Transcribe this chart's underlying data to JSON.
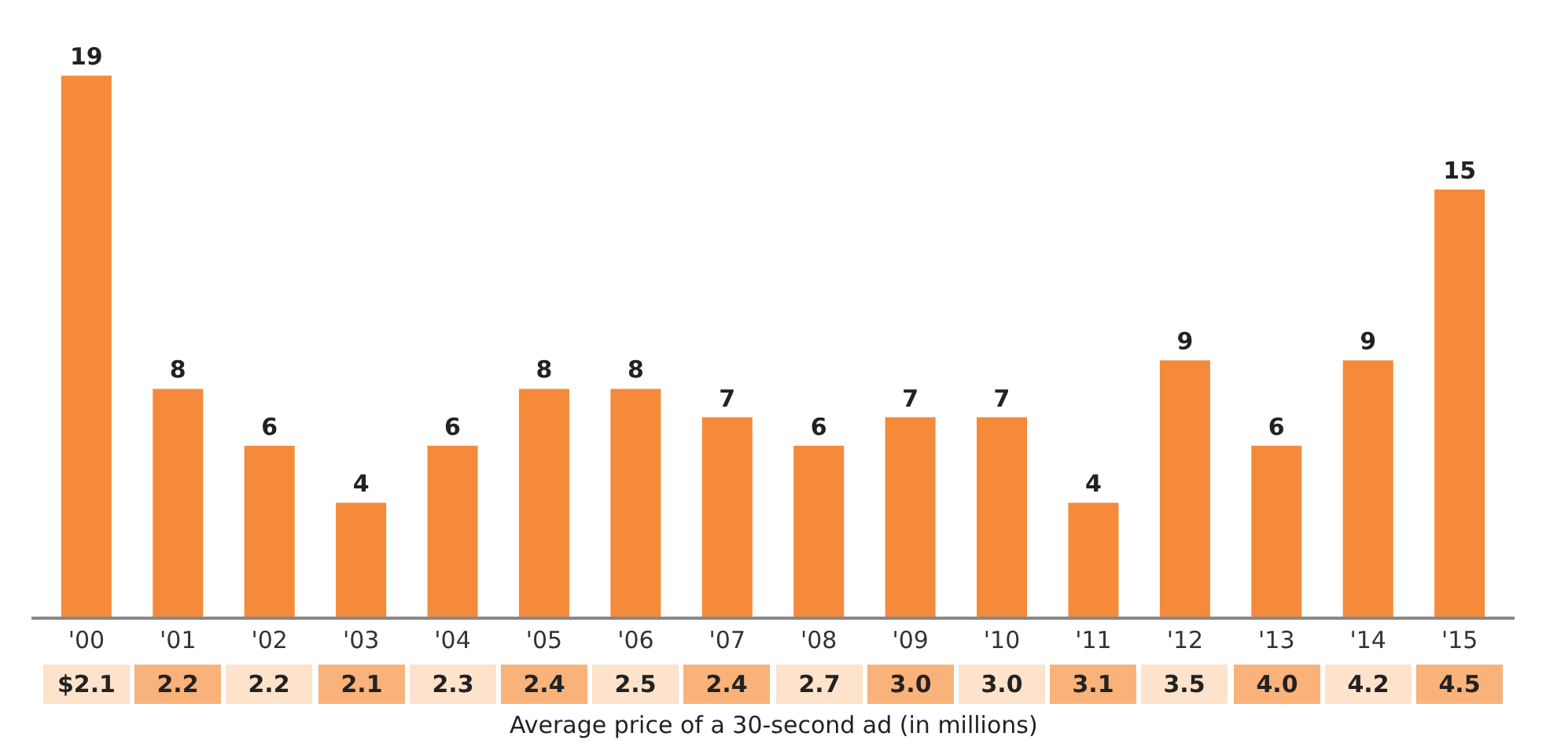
{
  "chart_data": {
    "type": "bar",
    "categories": [
      "'00",
      "'01",
      "'02",
      "'03",
      "'04",
      "'05",
      "'06",
      "'07",
      "'08",
      "'09",
      "'10",
      "'11",
      "'12",
      "'13",
      "'14",
      "'15"
    ],
    "values": [
      19,
      8,
      6,
      4,
      6,
      8,
      8,
      7,
      6,
      7,
      7,
      4,
      9,
      6,
      9,
      15
    ],
    "color": "#f58a3a",
    "data_labels": true,
    "grid": false,
    "legend": false,
    "annotations": [
      "$2.1",
      "2.2",
      "2.2",
      "2.1",
      "2.3",
      "2.4",
      "2.5",
      "2.4",
      "2.7",
      "3.0",
      "3.0",
      "3.1",
      "3.5",
      "4.0",
      "4.2",
      "4.5",
      "Average price of a 30-second ad (in millions)"
    ]
  }
}
